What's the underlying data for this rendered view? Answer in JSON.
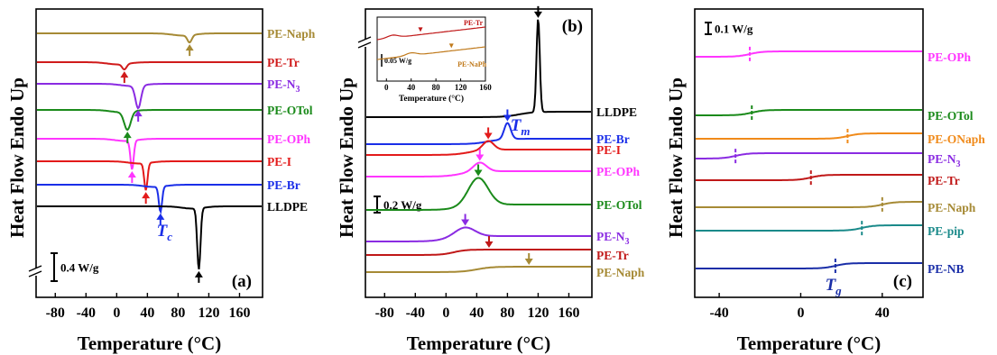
{
  "chart_data": [
    {
      "type": "line",
      "panel": "(a)",
      "xlabel": "Temperature (°C)",
      "ylabel": "Heat Flow Endo Up",
      "xticks": [
        -80,
        -40,
        0,
        40,
        80,
        120,
        160
      ],
      "xlim": [
        -105,
        190
      ],
      "scale_bar": "0.4 W/g",
      "marker_label": "T",
      "marker_label_sub": "c",
      "series": [
        {
          "name": "PE-Naph",
          "color": "#a68a35",
          "base": 37,
          "feature": {
            "kind": "dip",
            "at": 95,
            "depth": 8,
            "width": 4
          },
          "arrow_at": 95
        },
        {
          "name": "PE-Tr",
          "color": "#d01b1b",
          "base": 69,
          "feature": {
            "kind": "dip",
            "at": 10,
            "depth": 6,
            "width": 4
          },
          "arrow_at": 10
        },
        {
          "name": "PE-N3",
          "color": "#8a2be2",
          "base": 93,
          "feature": {
            "kind": "dip",
            "at": 28,
            "depth": 25,
            "width": 5
          },
          "arrow_at": 28
        },
        {
          "name": "PE-OTol",
          "color": "#1a8a1a",
          "base": 122,
          "feature": {
            "kind": "dip",
            "at": 14,
            "depth": 20,
            "width": 6
          },
          "arrow_at": 14
        },
        {
          "name": "PE-OPh",
          "color": "#ff35ff",
          "base": 154,
          "feature": {
            "kind": "dip",
            "at": 20,
            "depth": 32,
            "width": 3
          },
          "arrow_at": 20
        },
        {
          "name": "PE-I",
          "color": "#e31a1a",
          "base": 179,
          "feature": {
            "kind": "dip",
            "at": 38,
            "depth": 30,
            "width": 3
          },
          "arrow_at": 38
        },
        {
          "name": "PE-Br",
          "color": "#1a2ee8",
          "base": 205,
          "feature": {
            "kind": "dip",
            "at": 57,
            "depth": 28,
            "width": 3
          },
          "arrow_at": 57
        },
        {
          "name": "LLDPE",
          "color": "#000000",
          "base": 229,
          "feature": {
            "kind": "dip",
            "at": 107,
            "depth": 68,
            "width": 3
          },
          "arrow_at": 107
        }
      ]
    },
    {
      "type": "line",
      "panel": "(b)",
      "xlabel": "Temperature (°C)",
      "ylabel": "Heat Flow Endo Up",
      "xticks": [
        -80,
        -40,
        0,
        40,
        80,
        120,
        160
      ],
      "xlim": [
        -105,
        190
      ],
      "scale_bar": "0.2 W/g",
      "marker_label": "T",
      "marker_label_sub": "m",
      "series": [
        {
          "name": "LLDPE",
          "color": "#000000",
          "base": 124,
          "feature": {
            "kind": "peak",
            "at": 120,
            "height": 104,
            "width": 3
          },
          "arrow_at": 120
        },
        {
          "name": "PE-Br",
          "color": "#1a2ee8",
          "base": 154,
          "feature": {
            "kind": "peak",
            "at": 80,
            "height": 18,
            "width": 6
          },
          "arrow_at": 80
        },
        {
          "name": "PE-I",
          "color": "#e31a1a",
          "base": 166,
          "feature": {
            "kind": "peak",
            "at": 55,
            "height": 10,
            "width": 10
          },
          "arrow_at": 55
        },
        {
          "name": "PE-OPh",
          "color": "#ff35ff",
          "base": 190,
          "feature": {
            "kind": "peak",
            "at": 44,
            "height": 10,
            "width": 12
          },
          "arrow_at": 44
        },
        {
          "name": "PE-OTol",
          "color": "#1a8a1a",
          "base": 227,
          "feature": {
            "kind": "peak",
            "at": 42,
            "height": 30,
            "width": 18
          },
          "arrow_at": 42
        },
        {
          "name": "PE-N3",
          "color": "#8a2be2",
          "base": 262,
          "feature": {
            "kind": "peak",
            "at": 25,
            "height": 10,
            "width": 18
          },
          "arrow_at": 25
        },
        {
          "name": "PE-Tr",
          "color": "#c01818",
          "base": 283,
          "feature": {
            "kind": "step",
            "at": 10,
            "height": 6,
            "width": 8
          },
          "arrow_at": 56
        },
        {
          "name": "PE-Naph",
          "color": "#a68a35",
          "base": 302,
          "feature": {
            "kind": "step",
            "at": 40,
            "height": 6,
            "width": 10
          },
          "arrow_at": 108
        }
      ],
      "inset": {
        "xlabel": "Temperature (°C)",
        "xticks": [
          0,
          40,
          80,
          120,
          160
        ],
        "xlim": [
          -15,
          160
        ],
        "scale_bar": "0.05 W/g",
        "series": [
          {
            "name": "PE-Tr",
            "color": "#c01818",
            "arrow_at": 55
          },
          {
            "name": "PE-NaPh",
            "color": "#c07a1c",
            "arrow_at": 105
          }
        ]
      }
    },
    {
      "type": "line",
      "panel": "(c)",
      "xlabel": "Temperature (°C)",
      "ylabel": "Heat Flow Endo Up",
      "xticks": [
        -40,
        0,
        40
      ],
      "xlim": [
        -52,
        60
      ],
      "scale_bar": "0.1 W/g",
      "marker_label": "T",
      "marker_label_sub": "g",
      "series": [
        {
          "name": "PE-OPh",
          "color": "#ff35ff",
          "base": 63,
          "tg": -25
        },
        {
          "name": "PE-OTol",
          "color": "#1a8a1a",
          "base": 128,
          "tg": -24
        },
        {
          "name": "PE-ONaph",
          "color": "#f08a1a",
          "base": 154,
          "tg": 23
        },
        {
          "name": "PE-N3",
          "color": "#8a2be2",
          "base": 176,
          "tg": -32
        },
        {
          "name": "PE-Tr",
          "color": "#c01818",
          "base": 200,
          "tg": 5
        },
        {
          "name": "PE-Naph",
          "color": "#a68a35",
          "base": 230,
          "tg": 40
        },
        {
          "name": "PE-pip",
          "color": "#1a8a8a",
          "base": 256,
          "tg": 30
        },
        {
          "name": "PE-NB",
          "color": "#1a2ea8",
          "base": 298,
          "tg": 17
        }
      ]
    }
  ]
}
